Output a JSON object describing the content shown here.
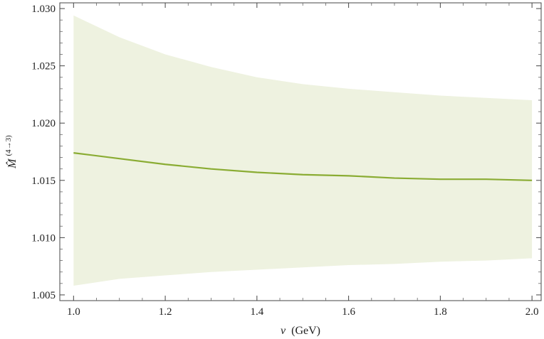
{
  "chart_data": {
    "type": "line",
    "xlabel_symbol": "ν",
    "xlabel_unit": "(GeV)",
    "ylabel_base": "M̂",
    "ylabel_superscript": "(4→3)",
    "xlim": [
      0.97,
      2.02
    ],
    "ylim": [
      1.0045,
      1.0305
    ],
    "xticks": [
      1.0,
      1.2,
      1.4,
      1.6,
      1.8,
      2.0
    ],
    "xtick_labels": [
      "1.0",
      "1.2",
      "1.4",
      "1.6",
      "1.8",
      "2.0"
    ],
    "yticks": [
      1.005,
      1.01,
      1.015,
      1.02,
      1.025,
      1.03
    ],
    "ytick_labels": [
      "1.005",
      "1.010",
      "1.015",
      "1.020",
      "1.025",
      "1.030"
    ],
    "x": [
      1.0,
      1.1,
      1.2,
      1.3,
      1.4,
      1.5,
      1.6,
      1.7,
      1.8,
      1.9,
      2.0
    ],
    "series": [
      {
        "values": [
          1.0174,
          1.0169,
          1.0164,
          1.016,
          1.0157,
          1.0155,
          1.0154,
          1.0152,
          1.0151,
          1.0151,
          1.015
        ],
        "color": "#8aac33"
      }
    ],
    "band": {
      "upper": [
        1.0294,
        1.0275,
        1.026,
        1.0249,
        1.024,
        1.0234,
        1.023,
        1.0227,
        1.0224,
        1.0222,
        1.022
      ],
      "lower": [
        1.0058,
        1.0064,
        1.0067,
        1.007,
        1.0072,
        1.0074,
        1.0076,
        1.0077,
        1.0079,
        1.008,
        1.0082
      ],
      "color": "#eef2e0"
    },
    "grid": false
  }
}
